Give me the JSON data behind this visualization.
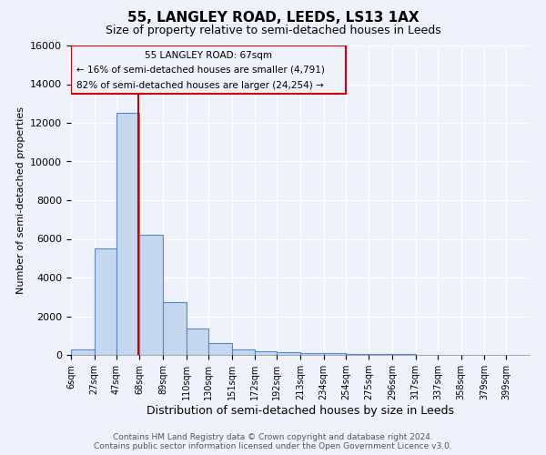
{
  "title": "55, LANGLEY ROAD, LEEDS, LS13 1AX",
  "subtitle": "Size of property relative to semi-detached houses in Leeds",
  "xlabel": "Distribution of semi-detached houses by size in Leeds",
  "ylabel": "Number of semi-detached properties",
  "bin_edges": [
    6,
    27,
    47,
    68,
    89,
    110,
    130,
    151,
    172,
    192,
    213,
    234,
    254,
    275,
    296,
    317,
    337,
    358,
    379,
    399,
    420
  ],
  "bar_heights": [
    300,
    5500,
    12500,
    6200,
    2750,
    1350,
    600,
    300,
    200,
    150,
    100,
    100,
    50,
    50,
    30,
    20,
    15,
    10,
    5,
    3
  ],
  "bar_color": "#c5d8f0",
  "bar_edge_color": "#5588cc",
  "ylim": [
    0,
    16000
  ],
  "yticks": [
    0,
    2000,
    4000,
    6000,
    8000,
    10000,
    12000,
    14000,
    16000
  ],
  "property_size": 67,
  "property_line_color": "#cc0000",
  "annotation_text_line1": "55 LANGLEY ROAD: 67sqm",
  "annotation_text_line2": "← 16% of semi-detached houses are smaller (4,791)",
  "annotation_text_line3": "82% of semi-detached houses are larger (24,254) →",
  "annotation_box_color": "#cc0000",
  "footer_line1": "Contains HM Land Registry data © Crown copyright and database right 2024.",
  "footer_line2": "Contains public sector information licensed under the Open Government Licence v3.0.",
  "background_color": "#eef2fb",
  "grid_color": "#ffffff"
}
